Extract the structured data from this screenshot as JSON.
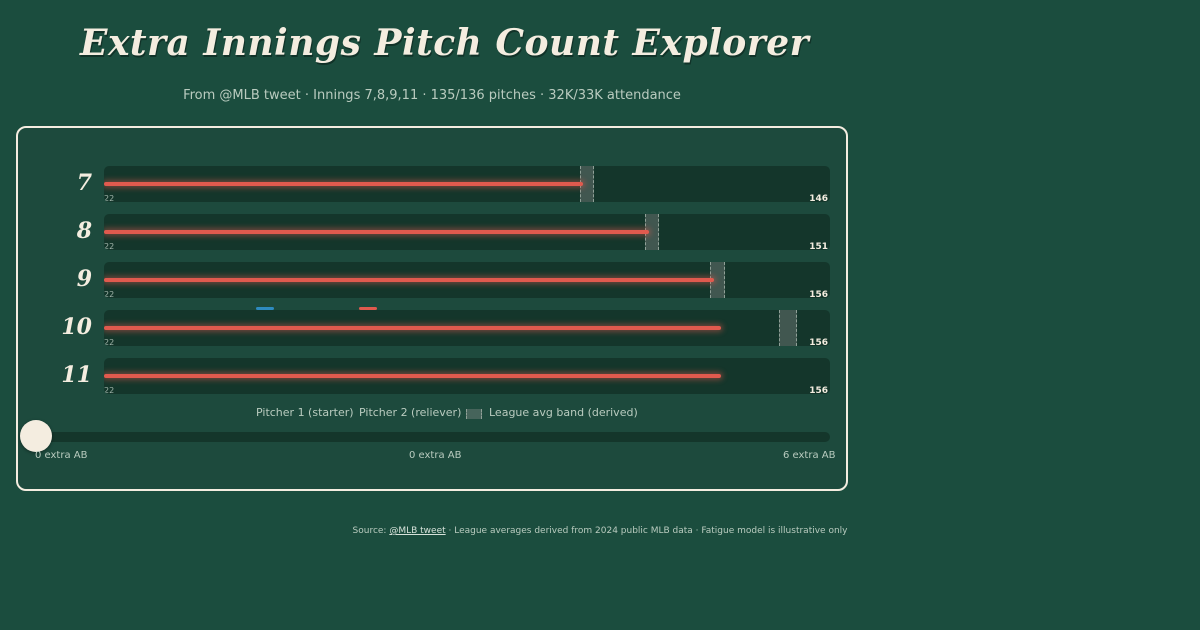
{
  "title": "Extra Innings Pitch Count Explorer",
  "subtitle": "From @MLB tweet · Innings 7,8,9,11 · 135/136 pitches · 32K/33K attendance",
  "colors": {
    "background": "#1b4d3e",
    "pitcher1": "#2e8bc0",
    "pitcher2": "#e05a4e",
    "band": "#8fa097",
    "text": "#f4ede0"
  },
  "chart_data": {
    "type": "bar",
    "categories": [
      "7",
      "8",
      "9",
      "10",
      "11"
    ],
    "series": [
      {
        "name": "Pitcher 1 (starter)",
        "values": [
          null,
          null,
          null,
          null,
          null
        ]
      },
      {
        "name": "Pitcher 2 (reliever)",
        "values": [
          66,
          75,
          84,
          85,
          85
        ]
      }
    ],
    "band": {
      "name": "League avg band (derived)",
      "ranges": [
        [
          65.5,
          67.5
        ],
        [
          74.5,
          76.5
        ],
        [
          83.5,
          85.5
        ],
        [
          93,
          95.5
        ],
        null
      ]
    },
    "start_labels": [
      "22",
      "22",
      "22",
      "22",
      "22"
    ],
    "end_labels": [
      "146",
      "151",
      "156",
      "156",
      "156"
    ],
    "xlim": [
      0,
      100
    ],
    "legend": "bottom-center"
  },
  "legend": {
    "pitcher1": "Pitcher 1 (starter)",
    "pitcher2": "Pitcher 2 (reliever)",
    "band": "League avg band (derived)"
  },
  "slider": {
    "value": 0,
    "min_label": "0 extra AB",
    "current_label": "0 extra AB",
    "max_label": "6 extra AB"
  },
  "footer": {
    "prefix": "Source: ",
    "link": "@MLB tweet",
    "suffix": " · League averages derived from 2024 public MLB data · Fatigue model is illustrative only"
  }
}
